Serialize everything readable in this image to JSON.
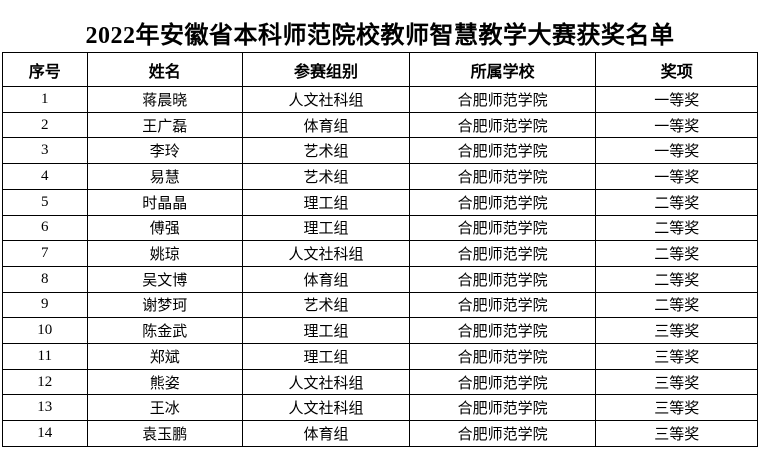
{
  "page": {
    "title": "2022年安徽省本科师范院校教师智慧教学大赛获奖名单"
  },
  "table": {
    "headers": [
      "序号",
      "姓名",
      "参赛组别",
      "所属学校",
      "奖项"
    ],
    "column_keys": [
      "no",
      "name",
      "group",
      "school",
      "award"
    ],
    "rows": [
      [
        "1",
        "蒋晨晓",
        "人文社科组",
        "合肥师范学院",
        "一等奖"
      ],
      [
        "2",
        "王广磊",
        "体育组",
        "合肥师范学院",
        "一等奖"
      ],
      [
        "3",
        "李玲",
        "艺术组",
        "合肥师范学院",
        "一等奖"
      ],
      [
        "4",
        "易慧",
        "艺术组",
        "合肥师范学院",
        "一等奖"
      ],
      [
        "5",
        "时晶晶",
        "理工组",
        "合肥师范学院",
        "二等奖"
      ],
      [
        "6",
        "傅强",
        "理工组",
        "合肥师范学院",
        "二等奖"
      ],
      [
        "7",
        "姚琼",
        "人文社科组",
        "合肥师范学院",
        "二等奖"
      ],
      [
        "8",
        "吴文博",
        "体育组",
        "合肥师范学院",
        "二等奖"
      ],
      [
        "9",
        "谢梦珂",
        "艺术组",
        "合肥师范学院",
        "二等奖"
      ],
      [
        "10",
        "陈金武",
        "理工组",
        "合肥师范学院",
        "三等奖"
      ],
      [
        "11",
        "郑斌",
        "理工组",
        "合肥师范学院",
        "三等奖"
      ],
      [
        "12",
        "熊姿",
        "人文社科组",
        "合肥师范学院",
        "三等奖"
      ],
      [
        "13",
        "王冰",
        "人文社科组",
        "合肥师范学院",
        "三等奖"
      ],
      [
        "14",
        "袁玉鹏",
        "体育组",
        "合肥师范学院",
        "三等奖"
      ]
    ]
  },
  "colors": {
    "text": "#000000",
    "border": "#000000",
    "background": "#ffffff"
  }
}
